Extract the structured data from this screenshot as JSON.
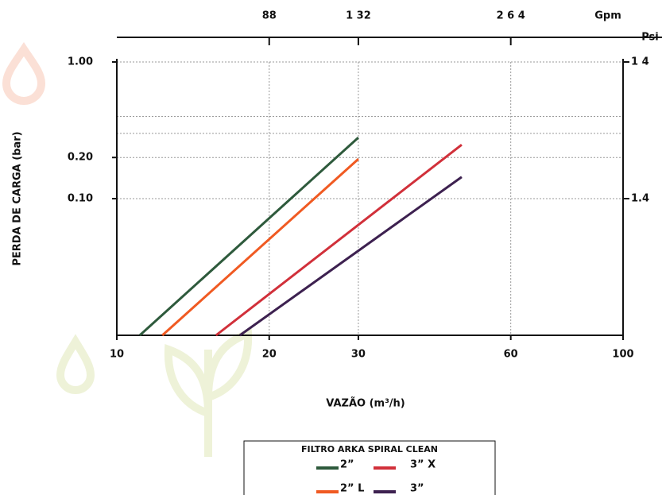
{
  "chart_data": {
    "type": "line",
    "x_label": "VAZÃO (m³/h)",
    "y_label": "PERDA DE CARGA (bar)",
    "x2_label": "Gpm",
    "y2_label": "Psi",
    "log_x": true,
    "log_y": true,
    "grid": true,
    "xlim": [
      10,
      100
    ],
    "xticks": [
      10,
      20,
      30,
      60,
      100
    ],
    "x2lim": [
      44,
      440
    ],
    "x2ticks": [
      88,
      {
        "value": 132,
        "label": "1 32"
      },
      {
        "value": 264,
        "label": "2 6 4"
      }
    ],
    "ylim": [
      0.01,
      1
    ],
    "yticks": [
      {
        "value": 1,
        "label": "1.00"
      },
      {
        "value": 0.2,
        "label": "0.20"
      },
      {
        "value": 0.1,
        "label": "0.10"
      }
    ],
    "minor_yticks": [
      0.3,
      0.4
    ],
    "y2lim": [
      0.14,
      14
    ],
    "y2ticks": [
      {
        "value": 14,
        "label": "1 4"
      },
      1.4
    ],
    "legend_title": "FILTRO ARKA SPIRAL CLEAN",
    "series": [
      {
        "name": "2”",
        "color": "#2e5a3c",
        "x": [
          11.1,
          30
        ],
        "values": [
          0.01,
          0.28
        ]
      },
      {
        "name": "2” L",
        "color": "#f05a22",
        "x": [
          12.3,
          30
        ],
        "values": [
          0.01,
          0.195
        ]
      },
      {
        "name": "3” X",
        "color": "#d1303a",
        "x": [
          15.7,
          48
        ],
        "values": [
          0.01,
          0.248
        ]
      },
      {
        "name": "3”",
        "color": "#3d2150",
        "x": [
          17.5,
          48
        ],
        "values": [
          0.01,
          0.144
        ]
      }
    ]
  }
}
